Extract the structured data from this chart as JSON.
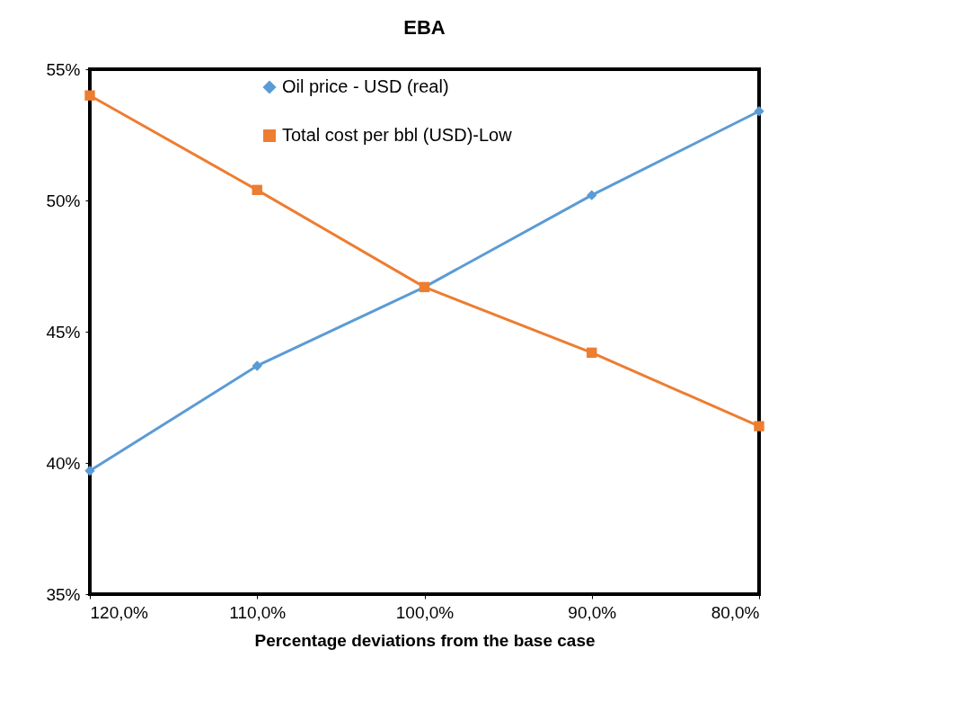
{
  "chart_data": {
    "type": "line",
    "title": "EBA",
    "xlabel": "Percentage deviations from the base case",
    "categories": [
      "120,0%",
      "110,0%",
      "100,0%",
      "90,0%",
      "80,0%"
    ],
    "series": [
      {
        "name": "Oil price - USD (real)",
        "color": "#5b9bd5",
        "marker": "diamond",
        "values": [
          39.7,
          43.7,
          46.7,
          50.2,
          53.4
        ]
      },
      {
        "name": "Total cost per bbl (USD)-Low",
        "color": "#ed7d31",
        "marker": "square",
        "values": [
          54.0,
          50.4,
          46.7,
          44.2,
          41.4
        ]
      }
    ],
    "ylim": [
      35,
      55
    ],
    "yticks": [
      {
        "value": 35,
        "label": "35%"
      },
      {
        "value": 40,
        "label": "40%"
      },
      {
        "value": 45,
        "label": "45%"
      },
      {
        "value": 50,
        "label": "50%"
      },
      {
        "value": 55,
        "label": "55%"
      }
    ],
    "grid": false,
    "legend": "top",
    "line_style": "solid"
  }
}
